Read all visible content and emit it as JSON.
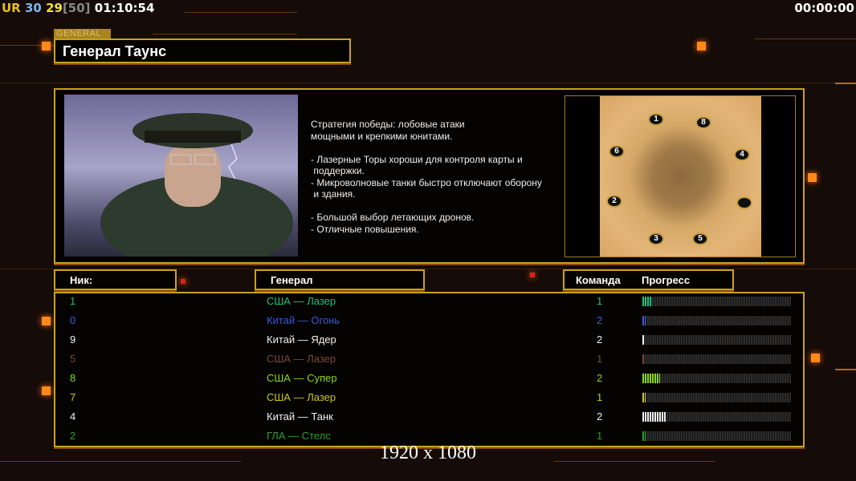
{
  "hud": {
    "ur": "UR",
    "v1": "30",
    "v2": "29",
    "v3": "[50]",
    "time": "01:10:54",
    "clock": "00:00:00"
  },
  "general": {
    "tag": "GENERAL",
    "name": "Генерал Таунс",
    "description": "Стратегия победы: лобовые атаки\nмощными и крепкими юнитами.\n\n- Лазерные Торы хороши для контроля карты и\n поддержки.\n- Микроволновые танки быстро отключают оборону\n и здания.\n\n- Большой выбор летающих дронов.\n- Отличные повышения."
  },
  "map": {
    "spawns": [
      "1",
      "8",
      "6",
      "4",
      "2",
      "",
      "3",
      "5"
    ]
  },
  "table": {
    "headers": {
      "nick": "Ник:",
      "general": "Генерал",
      "team": "Команда",
      "progress": "Прогресс"
    },
    "rows": [
      {
        "nick": "1",
        "general": "США — Лазер",
        "team": "1",
        "progress": 6,
        "color": "#1fc07a"
      },
      {
        "nick": "0",
        "general": "Китай — Огонь",
        "team": "2",
        "progress": 2,
        "color": "#3c5ad8"
      },
      {
        "nick": "9",
        "general": "Китай — Ядер",
        "team": "2",
        "progress": 1,
        "color": "#f0f0f0"
      },
      {
        "nick": "5",
        "general": "США — Лазер",
        "team": "1",
        "progress": 1,
        "color": "#7a4a30"
      },
      {
        "nick": "8",
        "general": "США — Супер",
        "team": "2",
        "progress": 12,
        "color": "#8ad81c"
      },
      {
        "nick": "7",
        "general": "США — Лазер",
        "team": "1",
        "progress": 2,
        "color": "#c8c81c"
      },
      {
        "nick": "4",
        "general": "Китай — Танк",
        "team": "2",
        "progress": 16,
        "color": "#f0f0f0"
      },
      {
        "nick": "2",
        "general": "ГЛА — Стелс",
        "team": "1",
        "progress": 2,
        "color": "#2aa02a"
      }
    ]
  },
  "resolution": "1920 x 1080"
}
